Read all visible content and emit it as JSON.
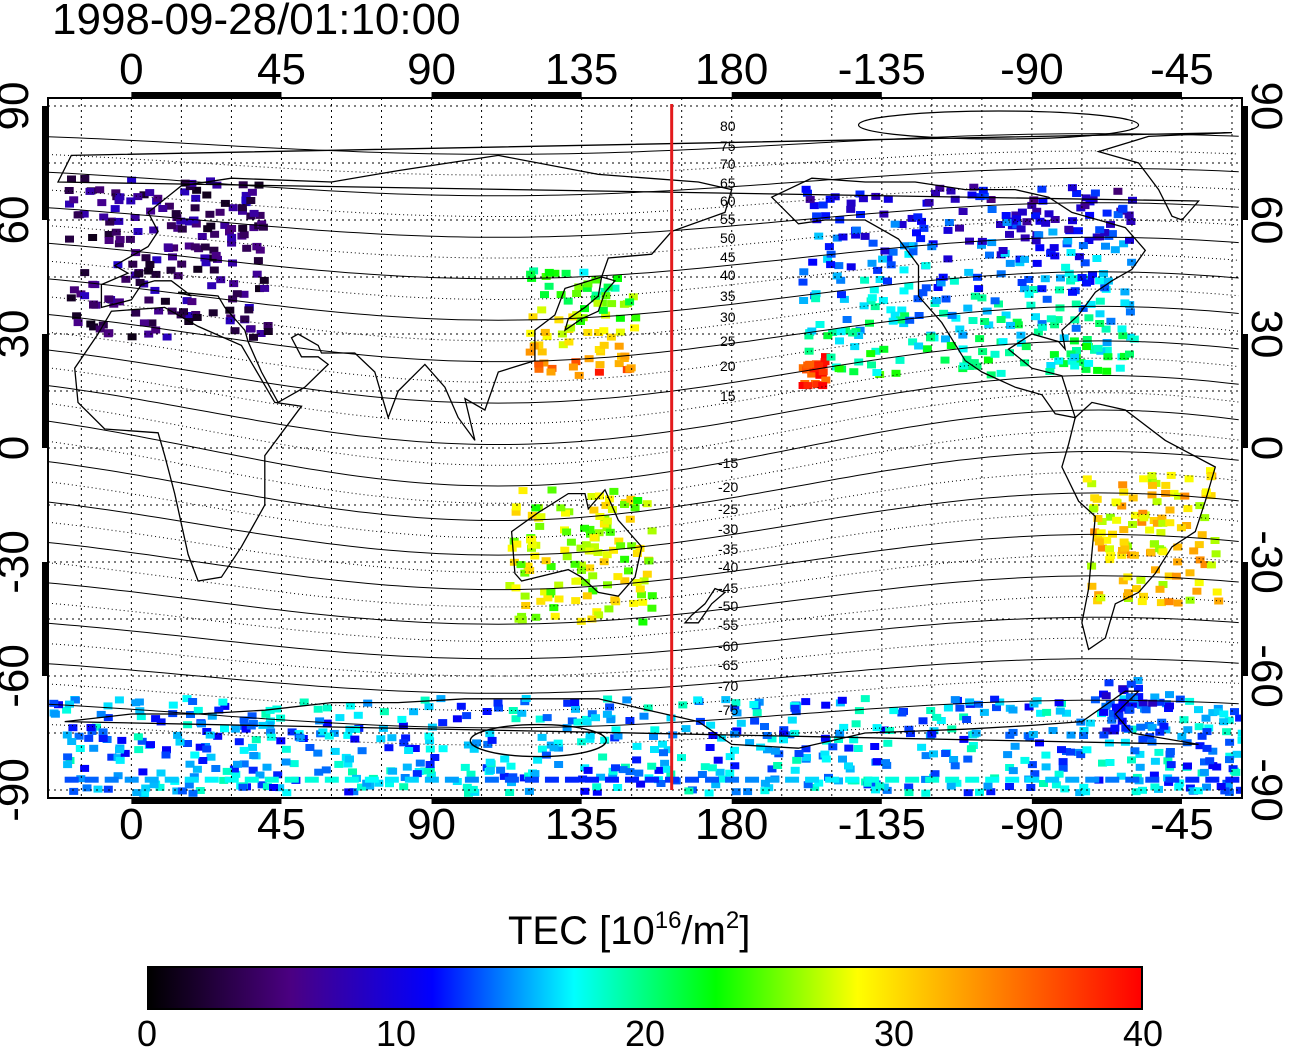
{
  "title": "1998-09-28/01:10:00",
  "map": {
    "projection": "equirectangular",
    "longitude_ticks": [
      "0",
      "45",
      "90",
      "135",
      "180",
      "-135",
      "-90",
      "-45"
    ],
    "latitude_ticks": [
      "90",
      "60",
      "30",
      "0",
      "-30",
      "-60",
      "-90"
    ],
    "marker_line": {
      "longitude": 162,
      "color": "#e31a1c"
    },
    "contour_labels": [
      "80",
      "75",
      "70",
      "65",
      "60",
      "55",
      "50",
      "45",
      "40",
      "35",
      "30",
      "25",
      "20",
      "15",
      "-15",
      "-20",
      "-25",
      "-30",
      "-35",
      "-40",
      "-45",
      "-50",
      "-55",
      "-60",
      "-65",
      "-70",
      "-75"
    ],
    "continent_outline_color": "#000000",
    "graticule": "dotted"
  },
  "colorbar": {
    "label_main": "TEC  [10",
    "label_exp1": "16",
    "label_mid": "/m",
    "label_exp2": "2",
    "label_end": "]",
    "min": 0,
    "max": 40,
    "ticks": [
      "0",
      "10",
      "20",
      "30",
      "40"
    ],
    "colors": [
      "#000000",
      "#4b0082",
      "#0000ff",
      "#00ffff",
      "#00ff00",
      "#ffff00",
      "#ff7f00",
      "#ff0000"
    ]
  },
  "chart_data": {
    "type": "heatmap",
    "title": "1998-09-28/01:10:00",
    "xlabel": "",
    "ylabel": "",
    "colorbar_label": "TEC [10^16/m^2]",
    "value_range": [
      0,
      40
    ],
    "regions": [
      {
        "name": "Europe",
        "lon": [
          -20,
          40
        ],
        "lat": [
          30,
          72
        ],
        "tec": 5
      },
      {
        "name": "East Asia / Japan",
        "lon": [
          118,
          150
        ],
        "lat": [
          20,
          48
        ],
        "tec": 30
      },
      {
        "name": "Hawaii",
        "lon": [
          -160,
          -153
        ],
        "lat": [
          17,
          26
        ],
        "tec": 39
      },
      {
        "name": "North America",
        "lon": [
          -160,
          -60
        ],
        "lat": [
          20,
          70
        ],
        "tec": 16
      },
      {
        "name": "Australia",
        "lon": [
          112,
          155
        ],
        "lat": [
          -45,
          -10
        ],
        "tec": 27
      },
      {
        "name": "South America",
        "lon": [
          -75,
          -35
        ],
        "lat": [
          -40,
          -5
        ],
        "tec": 30
      },
      {
        "name": "Antarctic margin",
        "lon": [
          -180,
          180
        ],
        "lat": [
          -90,
          -65
        ],
        "tec": 15
      },
      {
        "name": "Antarctic Peninsula",
        "lon": [
          -70,
          -50
        ],
        "lat": [
          -75,
          -60
        ],
        "tec": 12
      }
    ]
  }
}
